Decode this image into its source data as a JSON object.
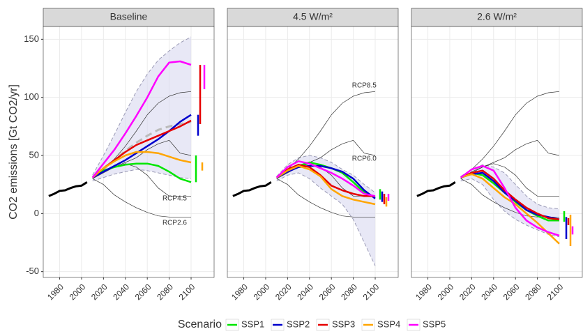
{
  "y_label": "CO2 emissions [Gt CO2/yr]",
  "legend_title": "Scenario",
  "chart_data": [
    {
      "type": "line",
      "title": "Baseline",
      "xlim": [
        1965,
        2121
      ],
      "ylim": [
        -55,
        161
      ],
      "xticks": [
        1980,
        2000,
        2020,
        2040,
        2060,
        2080,
        2100
      ],
      "yticks": [
        -50,
        0,
        50,
        100,
        150
      ],
      "grid": true,
      "history": {
        "x": [
          1970,
          1975,
          1980,
          1985,
          1990,
          1995,
          2000,
          2005
        ],
        "values": [
          15,
          17,
          19.5,
          20,
          22,
          23.5,
          24,
          27
        ],
        "color": "#000000"
      },
      "x": [
        2010,
        2020,
        2030,
        2040,
        2050,
        2060,
        2070,
        2080,
        2090,
        2100
      ],
      "band": {
        "lower": [
          28,
          31,
          34,
          36,
          38,
          37,
          35,
          33,
          31,
          30
        ],
        "upper": [
          33,
          50,
          68,
          87,
          105,
          120,
          132,
          140,
          147,
          152
        ],
        "median": [
          31,
          38,
          46,
          54,
          61,
          67,
          72,
          75,
          77,
          79
        ]
      },
      "reference": [
        [
          31,
          38,
          47,
          58,
          71,
          85,
          95,
          101,
          104,
          105
        ],
        [
          30,
          35,
          40,
          44,
          48,
          55,
          60,
          63,
          52,
          50
        ],
        [
          30,
          36,
          40,
          43,
          40,
          33,
          22,
          15,
          15,
          15
        ],
        [
          30,
          25,
          16,
          10,
          5,
          1,
          -2,
          -3,
          -3,
          -3
        ]
      ],
      "annotations": [
        {
          "text": "RCP4.5",
          "x": 2085,
          "y": 13
        },
        {
          "text": "RCP2.6",
          "x": 2085,
          "y": -8
        }
      ],
      "series": [
        {
          "name": "SSP1",
          "color": "#00e600",
          "values": [
            31,
            37,
            40,
            42,
            43,
            43,
            41,
            36,
            30,
            27
          ],
          "range": [
            27,
            50
          ]
        },
        {
          "name": "SSP2",
          "color": "#0000cc",
          "values": [
            31,
            36,
            41,
            46,
            52,
            58,
            64,
            71,
            79,
            85
          ],
          "range": [
            67,
            85
          ]
        },
        {
          "name": "SSP3",
          "color": "#e60000",
          "values": [
            31,
            39,
            46,
            53,
            59,
            63,
            67,
            71,
            75,
            80
          ],
          "range": [
            77,
            128
          ]
        },
        {
          "name": "SSP4",
          "color": "#ffa500",
          "values": [
            31,
            39,
            45,
            50,
            53,
            53,
            52,
            49,
            46,
            44
          ],
          "range": [
            37,
            44
          ]
        },
        {
          "name": "SSP5",
          "color": "#ff00ff",
          "values": [
            31,
            43,
            55,
            69,
            84,
            100,
            118,
            130,
            131,
            128
          ],
          "range": [
            107,
            128
          ]
        }
      ]
    },
    {
      "type": "line",
      "title": "4.5 W/m²",
      "xlim": [
        1965,
        2121
      ],
      "ylim": [
        -55,
        161
      ],
      "xticks": [
        1980,
        2000,
        2020,
        2040,
        2060,
        2080,
        2100
      ],
      "yticks": [
        -50,
        0,
        50,
        100,
        150
      ],
      "grid": true,
      "history": {
        "x": [
          1970,
          1975,
          1980,
          1985,
          1990,
          1995,
          2000,
          2005
        ],
        "values": [
          15,
          17,
          19.5,
          20,
          22,
          23.5,
          24,
          27
        ],
        "color": "#000000"
      },
      "x": [
        2010,
        2020,
        2030,
        2040,
        2050,
        2060,
        2070,
        2080,
        2090,
        2100
      ],
      "band": {
        "lower": [
          28,
          33,
          35,
          30,
          22,
          15,
          8,
          -5,
          -25,
          -45
        ],
        "upper": [
          32,
          42,
          48,
          50,
          48,
          44,
          38,
          33,
          25,
          18
        ]
      },
      "reference": [
        [
          31,
          38,
          47,
          58,
          71,
          85,
          95,
          101,
          104,
          105
        ],
        [
          30,
          35,
          40,
          44,
          48,
          55,
          60,
          63,
          52,
          50
        ],
        [
          30,
          36,
          40,
          43,
          40,
          33,
          22,
          15,
          15,
          15
        ],
        [
          30,
          25,
          16,
          10,
          5,
          1,
          -2,
          -3,
          -3,
          -3
        ]
      ],
      "annotations": [
        {
          "text": "RCP8.5",
          "x": 2090,
          "y": 110
        },
        {
          "text": "RCP6.0",
          "x": 2090,
          "y": 47
        }
      ],
      "series": [
        {
          "name": "SSP1",
          "color": "#00e600",
          "values": [
            31,
            37,
            41,
            44,
            42,
            39,
            35,
            27,
            18,
            14
          ],
          "range": [
            12,
            21
          ]
        },
        {
          "name": "SSP2",
          "color": "#0000cc",
          "values": [
            31,
            36,
            40,
            41,
            41,
            39,
            36,
            30,
            20,
            13
          ],
          "range": [
            10,
            19
          ]
        },
        {
          "name": "SSP3",
          "color": "#e60000",
          "values": [
            31,
            38,
            42,
            40,
            33,
            24,
            20,
            17,
            15,
            15
          ],
          "range": [
            8,
            17
          ]
        },
        {
          "name": "SSP4",
          "color": "#ffa500",
          "values": [
            31,
            37,
            41,
            38,
            32,
            21,
            15,
            12,
            10,
            8
          ],
          "range": [
            6,
            14
          ]
        },
        {
          "name": "SSP5",
          "color": "#ff00ff",
          "values": [
            31,
            40,
            45,
            43,
            39,
            35,
            30,
            24,
            17,
            15
          ],
          "range": [
            11,
            17
          ]
        }
      ]
    },
    {
      "type": "line",
      "title": "2.6 W/m²",
      "xlim": [
        1965,
        2121
      ],
      "ylim": [
        -55,
        161
      ],
      "xticks": [
        1980,
        2000,
        2020,
        2040,
        2060,
        2080,
        2100
      ],
      "yticks": [
        -50,
        0,
        50,
        100,
        150
      ],
      "grid": true,
      "history": {
        "x": [
          1970,
          1975,
          1980,
          1985,
          1990,
          1995,
          2000,
          2005
        ],
        "values": [
          15,
          17,
          19.5,
          20,
          22,
          23.5,
          24,
          27
        ],
        "color": "#000000"
      },
      "x": [
        2010,
        2020,
        2030,
        2040,
        2050,
        2060,
        2070,
        2080,
        2090,
        2100
      ],
      "band": {
        "lower": [
          28,
          30,
          25,
          12,
          2,
          -5,
          -10,
          -14,
          -18,
          -20
        ],
        "upper": [
          32,
          38,
          42,
          40,
          35,
          25,
          15,
          8,
          5,
          4
        ]
      },
      "reference": [
        [
          31,
          38,
          47,
          58,
          71,
          85,
          95,
          101,
          104,
          105
        ],
        [
          30,
          35,
          40,
          44,
          48,
          55,
          60,
          63,
          52,
          50
        ],
        [
          30,
          36,
          40,
          43,
          40,
          33,
          22,
          15,
          15,
          15
        ],
        [
          30,
          25,
          16,
          10,
          5,
          1,
          -2,
          -3,
          -3,
          -3
        ]
      ],
      "series": [
        {
          "name": "SSP1",
          "color": "#00e600",
          "values": [
            31,
            35,
            33,
            26,
            18,
            10,
            3,
            -2,
            -6,
            -6
          ],
          "range": [
            -7,
            2
          ]
        },
        {
          "name": "SSP2",
          "color": "#0000cc",
          "values": [
            31,
            34,
            35,
            28,
            18,
            11,
            3,
            -1,
            -3,
            -5
          ],
          "range": [
            -22,
            -3
          ]
        },
        {
          "name": "SSP3",
          "color": "#e60000",
          "values": [
            31,
            35,
            37,
            30,
            20,
            12,
            5,
            0,
            -4,
            -5
          ],
          "range": [
            -10,
            -4
          ]
        },
        {
          "name": "SSP4",
          "color": "#ffa500",
          "values": [
            31,
            34,
            30,
            22,
            14,
            8,
            0,
            -8,
            -17,
            -26
          ],
          "range": [
            -28,
            -1
          ]
        },
        {
          "name": "SSP5",
          "color": "#ff00ff",
          "values": [
            31,
            38,
            41,
            37,
            22,
            5,
            -6,
            -12,
            -16,
            -19
          ],
          "range": [
            -18,
            -11
          ]
        }
      ]
    }
  ]
}
